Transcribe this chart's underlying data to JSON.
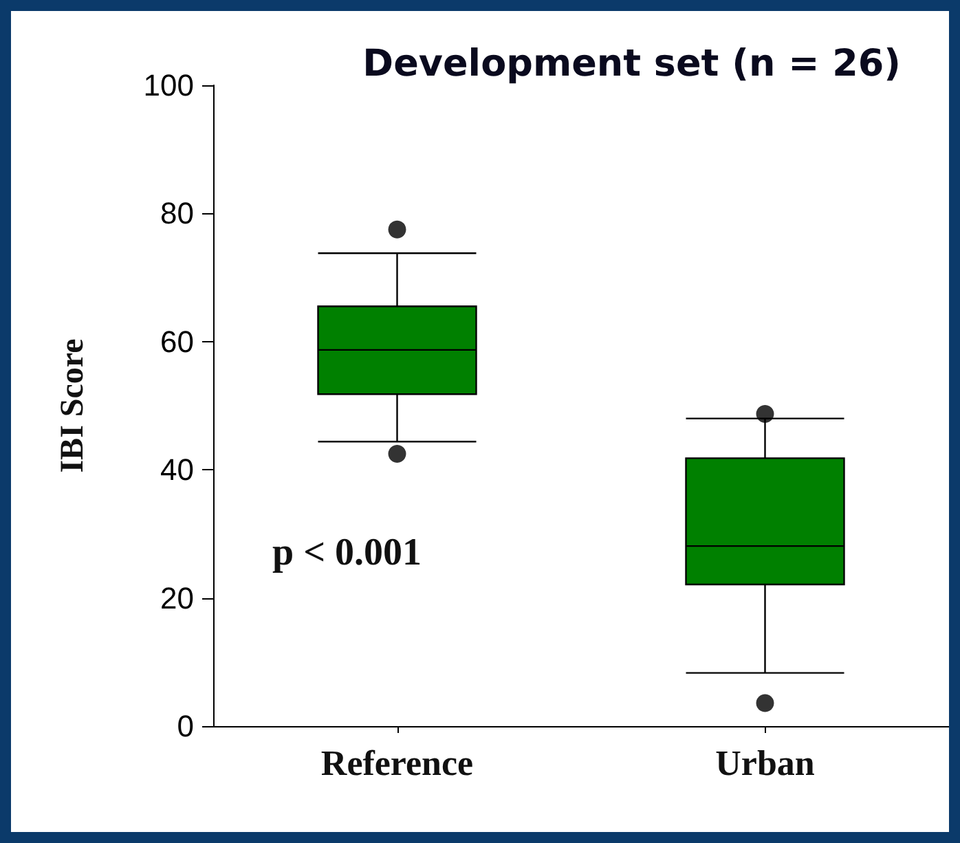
{
  "chart_data": {
    "type": "box",
    "title": "Development set (n = 26)",
    "ylabel": "IBI Score",
    "categories": [
      "Reference",
      "Urban"
    ],
    "color": "#008000",
    "boxes": [
      {
        "low": 44.4,
        "q1": 51.8,
        "median": 58.7,
        "q3": 65.5,
        "high": 73.8,
        "outliers": [
          77.5,
          42.5
        ]
      },
      {
        "low": 8.3,
        "q1": 22.1,
        "median": 28.1,
        "q3": 41.8,
        "high": 48,
        "outliers": [
          48.7,
          3.6
        ]
      }
    ],
    "ylim": [
      0,
      100
    ],
    "yticks": [
      0,
      20,
      40,
      60,
      80,
      100
    ],
    "grid": false,
    "annotations": [
      {
        "text": "p < 0.001"
      }
    ]
  }
}
